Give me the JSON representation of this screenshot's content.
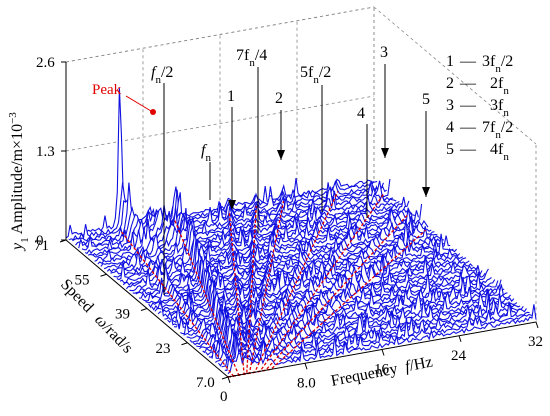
{
  "chart_data": {
    "type": "waterfall-3d",
    "x_axis": {
      "label": "Frequency",
      "label_symbol": "f",
      "label_unit": "/Hz",
      "ticks": [
        "0",
        "8.0",
        "16",
        "24",
        "32"
      ],
      "range": [
        0,
        32
      ]
    },
    "y_axis": {
      "label": "Speed",
      "label_symbol": "ω",
      "label_unit": "/rad/s",
      "ticks": [
        "7.0",
        "23",
        "39",
        "55",
        "71"
      ],
      "range": [
        7,
        71
      ]
    },
    "z_axis": {
      "label_prefix": "y",
      "label_sub": "1",
      "label_main": " Amplitude/m×10",
      "label_exp": "−3",
      "ticks": [
        "0",
        "1.3",
        "2.6"
      ],
      "range": [
        0,
        2.6
      ]
    },
    "annotations": {
      "peak": "Peak",
      "fn_half": {
        "pre": "f",
        "sub": "n",
        "post": "/2"
      },
      "fn": {
        "pre": "f",
        "sub": "n",
        "post": ""
      },
      "seven_fn_quarter": {
        "pre": "7f",
        "sub": "n",
        "post": "/4"
      },
      "five_fn_half": {
        "pre": "5f",
        "sub": "n",
        "post": "/2"
      },
      "markers": [
        "1",
        "2",
        "3",
        "4",
        "5"
      ]
    },
    "legend": [
      {
        "num": "1",
        "pre": "3f",
        "sub": "n",
        "post": "/2"
      },
      {
        "num": "2",
        "pre": "2f",
        "sub": "n",
        "post": ""
      },
      {
        "num": "3",
        "pre": "3f",
        "sub": "n",
        "post": ""
      },
      {
        "num": "4",
        "pre": "7f",
        "sub": "n",
        "post": "/2"
      },
      {
        "num": "5",
        "pre": "4f",
        "sub": "n",
        "post": ""
      }
    ],
    "order_lines": [
      {
        "order": 0.5,
        "color": "#e00000"
      },
      {
        "order": 1.0,
        "color": "#e00000"
      },
      {
        "order": 1.5,
        "color": "#e00000"
      },
      {
        "order": 1.75,
        "color": "#e00000"
      },
      {
        "order": 2.0,
        "color": "#e00000"
      },
      {
        "order": 2.5,
        "color": "#e00000"
      },
      {
        "order": 3.0,
        "color": "#e00000"
      },
      {
        "order": 3.5,
        "color": "#e00000"
      },
      {
        "order": 4.0,
        "color": "#e00000"
      }
    ],
    "peak": {
      "frequency": 5.6,
      "speed": 71,
      "amplitude": 1.95
    },
    "series_color": "#1010e0",
    "grid": true
  }
}
